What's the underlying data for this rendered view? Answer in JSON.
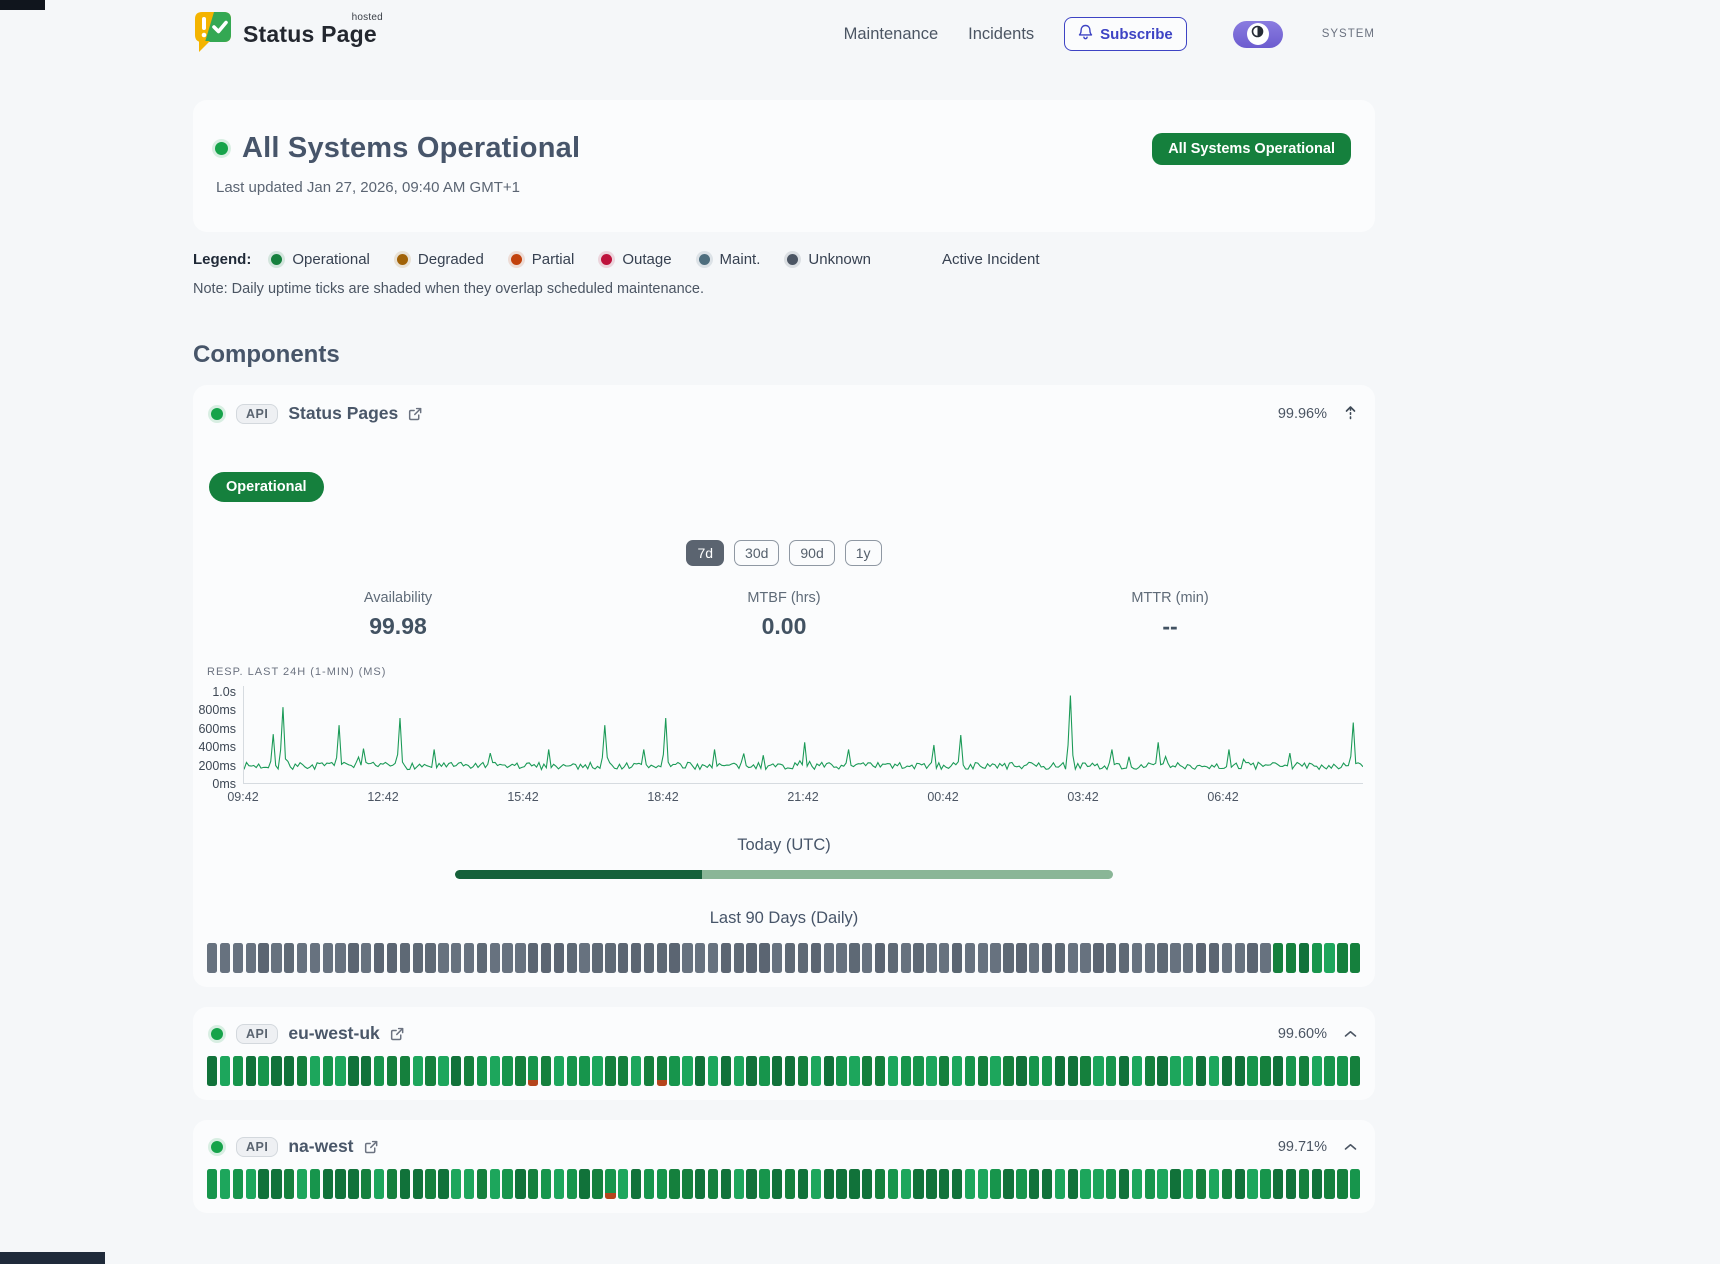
{
  "header": {
    "brand_name": "Status Page",
    "brand_superscript": "hosted",
    "nav": [
      {
        "label": "Maintenance"
      },
      {
        "label": "Incidents"
      }
    ],
    "subscribe_label": "Subscribe",
    "theme_toggle_label": "SYSTEM"
  },
  "hero": {
    "title": "All Systems Operational",
    "last_updated": "Last updated Jan 27, 2026, 09:40 AM GMT+1",
    "status_badge": "All Systems Operational"
  },
  "legend": {
    "label": "Legend:",
    "items": [
      {
        "label": "Operational",
        "color": "#15803d"
      },
      {
        "label": "Degraded",
        "color": "#a16207"
      },
      {
        "label": "Partial",
        "color": "#c2410c"
      },
      {
        "label": "Outage",
        "color": "#be123c"
      },
      {
        "label": "Maint.",
        "color": "#4e6e7e"
      },
      {
        "label": "Unknown",
        "color": "#4b5563"
      }
    ],
    "active_incident_label": "Active Incident",
    "note": "Note: Daily uptime ticks are shaded when they overlap scheduled maintenance."
  },
  "components_heading": "Components",
  "expanded_component": {
    "type_badge": "API",
    "name": "Status Pages",
    "uptime": "99.96%",
    "status_badge": "Operational",
    "periods": [
      {
        "label": "7d",
        "active": true
      },
      {
        "label": "30d",
        "active": false
      },
      {
        "label": "90d",
        "active": false
      },
      {
        "label": "1y",
        "active": false
      }
    ],
    "stats": [
      {
        "label": "Availability",
        "value": "99.98"
      },
      {
        "label": "MTBF (hrs)",
        "value": "0.00"
      },
      {
        "label": "MTTR (min)",
        "value": "--"
      }
    ],
    "chart_data": {
      "type": "line",
      "title": "RESP. LAST 24H (1-MIN) (MS)",
      "y_ticks": [
        "1.0s",
        "800ms",
        "600ms",
        "400ms",
        "200ms",
        "0ms"
      ],
      "y_max_ms": 1000,
      "x_ticks": [
        "09:42",
        "12:42",
        "15:42",
        "18:42",
        "21:42",
        "00:42",
        "03:42",
        "06:42"
      ],
      "baseline_ms": 168,
      "noise_ms": 40,
      "points": 460,
      "spikes": [
        {
          "f": 0.026,
          "ms": 520
        },
        {
          "f": 0.035,
          "ms": 820
        },
        {
          "f": 0.084,
          "ms": 620
        },
        {
          "f": 0.107,
          "ms": 360
        },
        {
          "f": 0.139,
          "ms": 700
        },
        {
          "f": 0.169,
          "ms": 350
        },
        {
          "f": 0.219,
          "ms": 310
        },
        {
          "f": 0.272,
          "ms": 350
        },
        {
          "f": 0.322,
          "ms": 620
        },
        {
          "f": 0.358,
          "ms": 350
        },
        {
          "f": 0.377,
          "ms": 700
        },
        {
          "f": 0.42,
          "ms": 350
        },
        {
          "f": 0.5,
          "ms": 430
        },
        {
          "f": 0.54,
          "ms": 350
        },
        {
          "f": 0.616,
          "ms": 400
        },
        {
          "f": 0.64,
          "ms": 510
        },
        {
          "f": 0.738,
          "ms": 950
        },
        {
          "f": 0.776,
          "ms": 350
        },
        {
          "f": 0.817,
          "ms": 430
        },
        {
          "f": 0.881,
          "ms": 350
        },
        {
          "f": 0.935,
          "ms": 310
        },
        {
          "f": 0.991,
          "ms": 650
        }
      ],
      "line_color": "#1b9a57"
    },
    "today_label": "Today (UTC)",
    "today_progress_pct": 37.5,
    "history_label": "Last 90 Days (Daily)",
    "history": {
      "days": 90,
      "tail_green": 7,
      "seed": 11
    }
  },
  "components": [
    {
      "type_badge": "API",
      "name": "eu-west-uk",
      "uptime": "99.60%",
      "history": {
        "days": 90,
        "partial_days": [
          25,
          35
        ],
        "seed": 5
      }
    },
    {
      "type_badge": "API",
      "name": "na-west",
      "uptime": "99.71%",
      "history": {
        "days": 90,
        "partial_days": [
          31
        ],
        "seed": 9
      }
    }
  ],
  "colors": {
    "accent_green": "#15803d",
    "dot_green": "#16a34a",
    "progress_dark": "#15603a",
    "progress_light": "#8ab697",
    "tick_grays": [
      "#5e6975",
      "#67727f",
      "#5b6572"
    ],
    "tick_greens": [
      "#17954c",
      "#15803d",
      "#11723a",
      "#1da65c"
    ],
    "partial_red": "#b5451d",
    "subscribe_indigo": "#3d43c4"
  }
}
